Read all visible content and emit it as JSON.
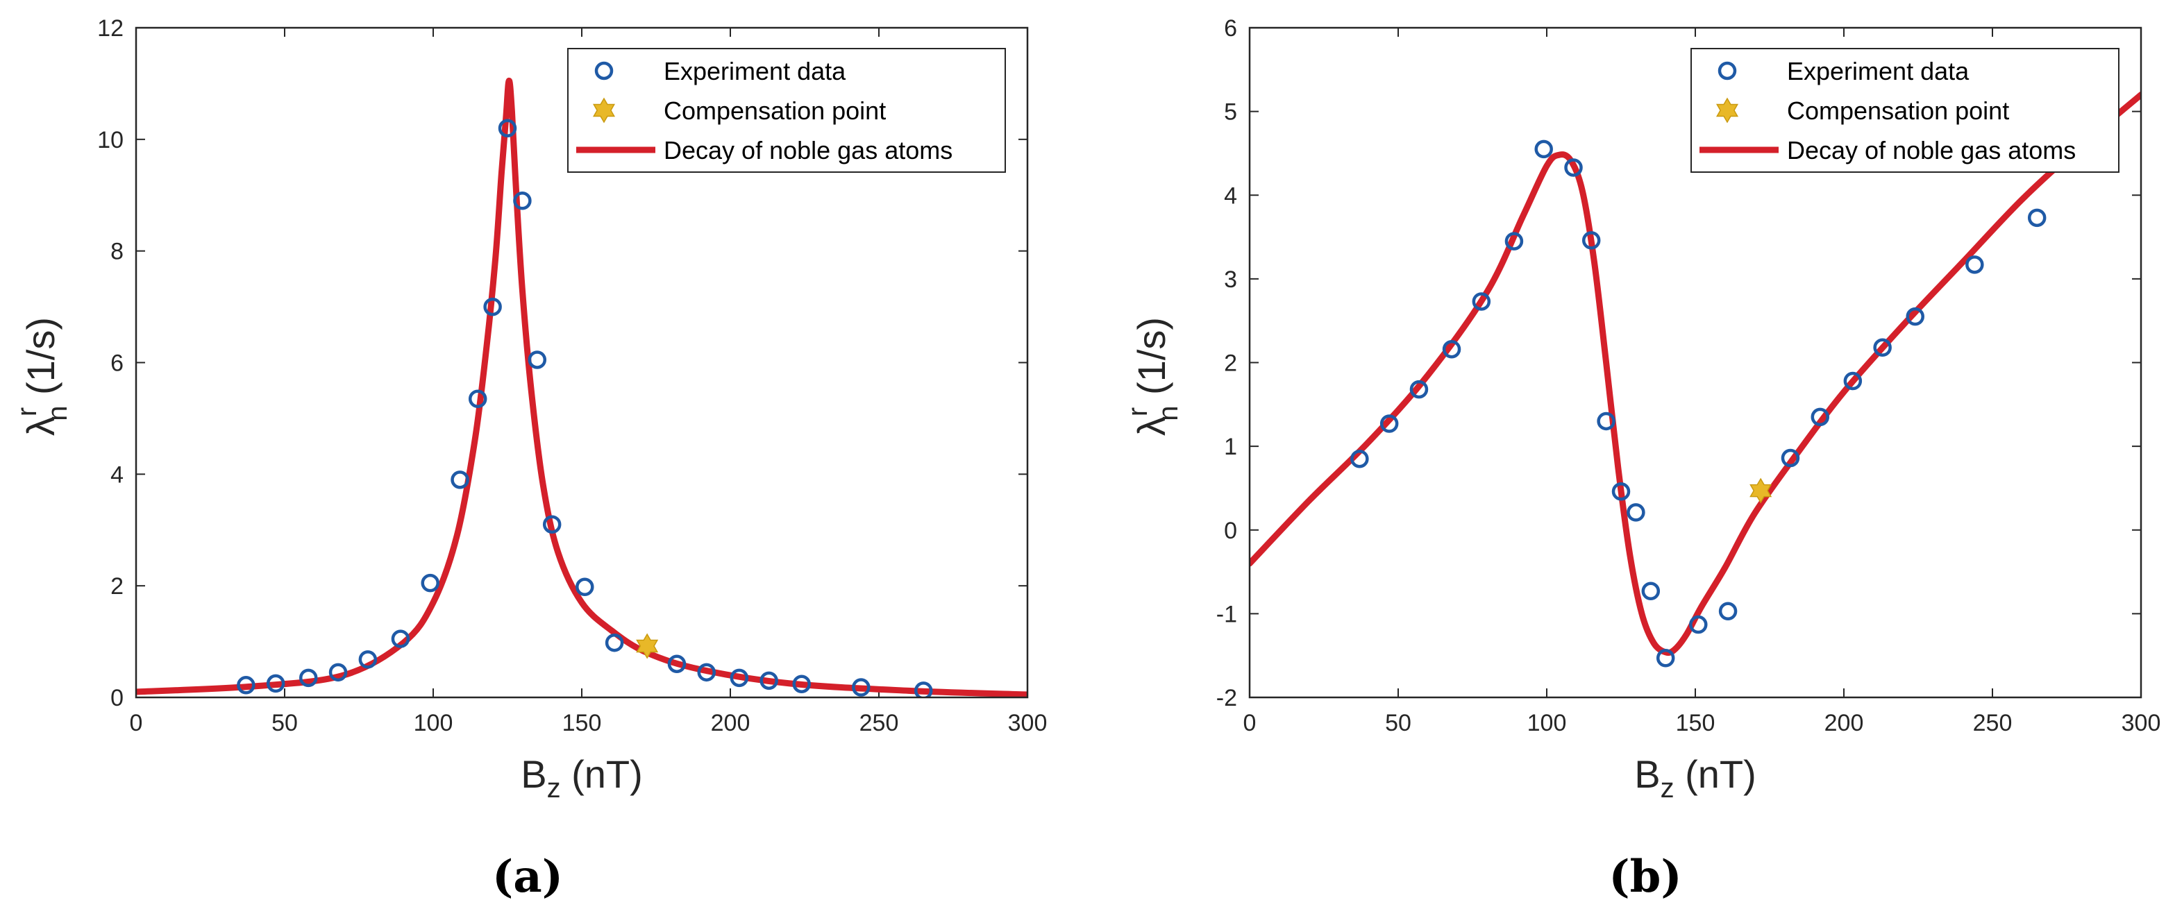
{
  "colors": {
    "experiment": "#1f5aa6",
    "compensation": "#e8b828",
    "decay": "#d4202a",
    "axis": "#262626",
    "legend_border": "#262626"
  },
  "icons": {
    "experiment": "circle-marker-icon",
    "compensation": "hexagram-marker-icon",
    "decay": "line-icon"
  },
  "chart_data": [
    {
      "panel_label": "(a)",
      "type": "scatter",
      "title": "",
      "xlabel": {
        "base": "B",
        "sub": "z",
        "unit": " (nT)"
      },
      "ylabel": {
        "base": "λ",
        "sup": "r",
        "sub": "n",
        "unit": " (1/s)"
      },
      "xlim": [
        0,
        300
      ],
      "ylim": [
        0,
        12
      ],
      "xticks": [
        0,
        50,
        100,
        150,
        200,
        250,
        300
      ],
      "yticks": [
        0,
        2,
        4,
        6,
        8,
        10,
        12
      ],
      "xtick_labels": [
        "0",
        "50",
        "100",
        "150",
        "200",
        "250",
        "300"
      ],
      "ytick_labels": [
        "0",
        "2",
        "4",
        "6",
        "8",
        "10",
        "12"
      ],
      "legend_position": "top-right",
      "legend": [
        "Experiment data",
        "Compensation point",
        "Decay of noble gas atoms"
      ],
      "series": [
        {
          "name": "Experiment data",
          "kind": "scatter",
          "x": [
            37,
            47,
            58,
            68,
            78,
            89,
            99,
            109,
            115,
            120,
            125,
            130,
            135,
            140,
            151,
            161,
            182,
            192,
            203,
            213,
            224,
            244,
            265
          ],
          "y": [
            0.22,
            0.25,
            0.35,
            0.45,
            0.68,
            1.05,
            2.05,
            3.9,
            5.35,
            7.0,
            10.2,
            8.9,
            6.05,
            3.1,
            1.98,
            0.98,
            0.6,
            0.45,
            0.35,
            0.3,
            0.24,
            0.18,
            0.12
          ]
        },
        {
          "name": "Compensation point",
          "kind": "scatter",
          "x": [
            172
          ],
          "y": [
            0.92
          ]
        },
        {
          "name": "Decay of noble gas atoms",
          "kind": "line",
          "x": [
            0,
            40,
            70,
            90,
            100,
            108,
            114,
            118,
            121,
            123,
            124.5,
            125.5,
            126.5,
            128,
            130,
            133,
            137,
            142,
            150,
            160,
            172,
            190,
            220,
            260,
            300
          ],
          "y": [
            0.1,
            0.2,
            0.4,
            0.98,
            1.7,
            2.9,
            4.6,
            6.3,
            7.9,
            9.4,
            10.4,
            11.05,
            10.5,
            9.0,
            7.3,
            5.5,
            3.8,
            2.6,
            1.7,
            1.2,
            0.8,
            0.5,
            0.25,
            0.12,
            0.05
          ]
        }
      ]
    },
    {
      "panel_label": "(b)",
      "type": "scatter",
      "title": "",
      "xlabel": {
        "base": "B",
        "sub": "z",
        "unit": " (nT)"
      },
      "ylabel": {
        "base": "λ",
        "sup": "r",
        "sub": "n",
        "unit": " (1/s)"
      },
      "xlim": [
        0,
        300
      ],
      "ylim": [
        -2,
        6
      ],
      "xticks": [
        0,
        50,
        100,
        150,
        200,
        250,
        300
      ],
      "yticks": [
        -2,
        -1,
        0,
        1,
        2,
        3,
        4,
        5,
        6
      ],
      "xtick_labels": [
        "0",
        "50",
        "100",
        "150",
        "200",
        "250",
        "300"
      ],
      "ytick_labels": [
        "-2",
        "-1",
        "0",
        "1",
        "2",
        "3",
        "4",
        "5",
        "6"
      ],
      "legend_position": "top-right",
      "legend": [
        "Experiment data",
        "Compensation point",
        "Decay of noble gas atoms"
      ],
      "series": [
        {
          "name": "Experiment data",
          "kind": "scatter",
          "x": [
            37,
            47,
            57,
            68,
            78,
            89,
            99,
            109,
            115,
            120,
            125,
            130,
            135,
            140,
            151,
            161,
            182,
            192,
            203,
            213,
            224,
            244,
            265
          ],
          "y": [
            0.85,
            1.27,
            1.68,
            2.16,
            2.73,
            3.45,
            4.55,
            4.33,
            3.46,
            1.3,
            0.46,
            0.21,
            -0.73,
            -1.53,
            -1.13,
            -0.97,
            0.86,
            1.35,
            1.78,
            2.18,
            2.55,
            3.17,
            3.73
          ]
        },
        {
          "name": "Compensation point",
          "kind": "scatter",
          "x": [
            172
          ],
          "y": [
            0.47
          ]
        },
        {
          "name": "Decay of noble gas atoms",
          "kind": "line",
          "x": [
            0,
            20,
            40,
            60,
            80,
            92,
            100,
            104,
            108,
            112,
            116,
            120,
            124,
            128,
            132,
            136,
            140,
            143,
            147,
            152,
            160,
            170,
            185,
            200,
            220,
            240,
            260,
            280,
            300
          ],
          "y": [
            -0.4,
            0.35,
            1.05,
            1.85,
            2.85,
            3.75,
            4.35,
            4.48,
            4.42,
            4.05,
            3.2,
            2.0,
            0.75,
            -0.3,
            -1.0,
            -1.35,
            -1.46,
            -1.43,
            -1.25,
            -0.92,
            -0.45,
            0.2,
            0.95,
            1.65,
            2.45,
            3.2,
            3.95,
            4.6,
            5.2
          ]
        }
      ]
    }
  ]
}
